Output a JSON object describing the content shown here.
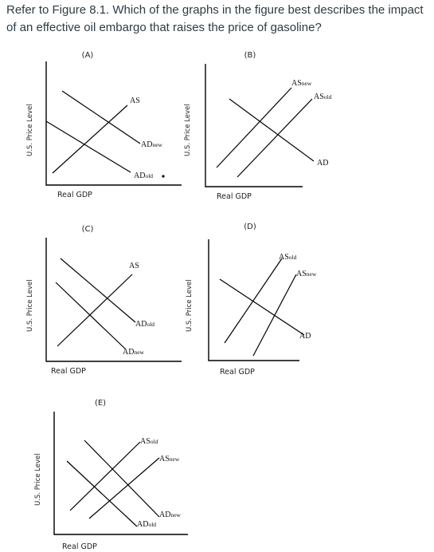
{
  "question": "Refer to Figure 8.1. Which of the graphs in the figure best describes the impact of an effective oil embargo that raises the price of gasoline?",
  "axis_labels": {
    "y": "U.S. Price Level",
    "x": "Real GDP"
  },
  "panels": [
    {
      "label": "(A)",
      "curves": [
        {
          "base": "AS",
          "sub": ""
        },
        {
          "base": "AD",
          "sub": "new"
        },
        {
          "base": "AD",
          "sub": "old"
        }
      ]
    },
    {
      "label": "(B)",
      "curves": [
        {
          "base": "AS",
          "sub": "new"
        },
        {
          "base": "AS",
          "sub": "old"
        },
        {
          "base": "AD",
          "sub": ""
        }
      ]
    },
    {
      "label": "(C)",
      "curves": [
        {
          "base": "AS",
          "sub": ""
        },
        {
          "base": "AD",
          "sub": "old"
        },
        {
          "base": "AD",
          "sub": "new"
        }
      ]
    },
    {
      "label": "(D)",
      "curves": [
        {
          "base": "AS",
          "sub": "old"
        },
        {
          "base": "AS",
          "sub": "new"
        },
        {
          "base": "AD",
          "sub": ""
        }
      ]
    },
    {
      "label": "(E)",
      "curves": [
        {
          "base": "AS",
          "sub": "old"
        },
        {
          "base": "AS",
          "sub": "new"
        },
        {
          "base": "AD",
          "sub": "new"
        },
        {
          "base": "AD",
          "sub": "old"
        }
      ]
    }
  ]
}
